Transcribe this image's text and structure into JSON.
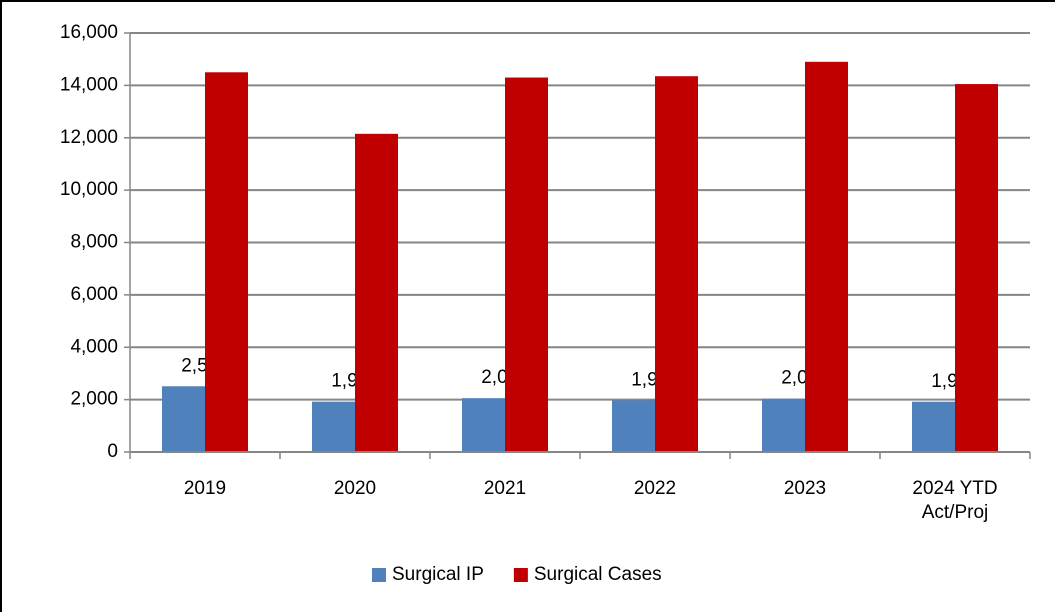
{
  "chart_data": {
    "type": "bar",
    "categories": [
      "2019",
      "2020",
      "2021",
      "2022",
      "2023",
      "2024 YTD Act/Proj"
    ],
    "series": [
      {
        "name": "Surgical IP",
        "color": "#4f81bd",
        "values": [
          2510,
          1922,
          2056,
          1973,
          2036,
          1919
        ],
        "value_labels": [
          "2,510",
          "1,922",
          "2,056",
          "1,973",
          "2,036",
          "1,919"
        ]
      },
      {
        "name": "Surgical Cases",
        "color": "#c00000",
        "values": [
          14500,
          12150,
          14300,
          14350,
          14900,
          14050
        ]
      }
    ],
    "ylim": [
      0,
      16000
    ],
    "yticks": [
      0,
      {
        "value": 2000,
        "label": "2,000"
      },
      {
        "value": 4000,
        "label": "4,000"
      },
      {
        "value": 6000,
        "label": "6,000"
      },
      {
        "value": 8000,
        "label": "8,000"
      },
      {
        "value": 10000,
        "label": "10,000"
      },
      {
        "value": 12000,
        "label": "12,000"
      },
      {
        "value": 14000,
        "label": "14,000"
      },
      {
        "value": 16000,
        "label": "16,000"
      }
    ],
    "grid": true,
    "legend": "bottom"
  }
}
